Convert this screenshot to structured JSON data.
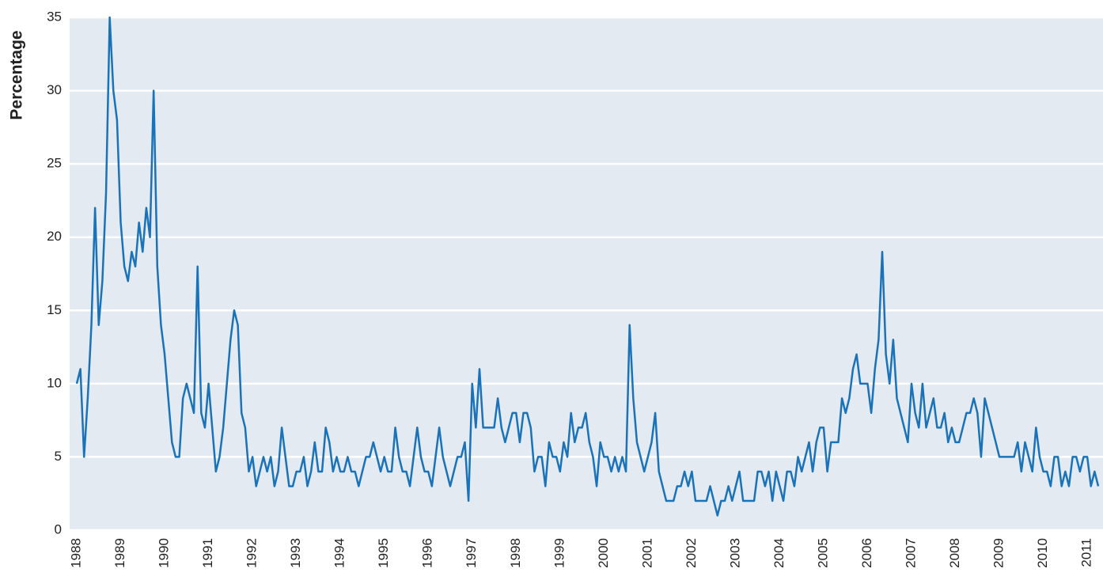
{
  "chart_data": {
    "type": "line",
    "y_label": "Percentage",
    "color": "#1a72b8",
    "grid": true,
    "ylim": [
      0,
      35
    ],
    "yticks": [
      0,
      5,
      10,
      15,
      20,
      25,
      30,
      35
    ],
    "categories": [
      "1988",
      null,
      null,
      null,
      null,
      null,
      null,
      null,
      null,
      null,
      null,
      null,
      "1989",
      null,
      null,
      null,
      null,
      null,
      null,
      null,
      null,
      null,
      null,
      null,
      "1990",
      null,
      null,
      null,
      null,
      null,
      null,
      null,
      null,
      null,
      null,
      null,
      "1991",
      null,
      null,
      null,
      null,
      null,
      null,
      null,
      null,
      null,
      null,
      null,
      "1992",
      null,
      null,
      null,
      null,
      null,
      null,
      null,
      null,
      null,
      null,
      null,
      "1993",
      null,
      null,
      null,
      null,
      null,
      null,
      null,
      null,
      null,
      null,
      null,
      "1994",
      null,
      null,
      null,
      null,
      null,
      null,
      null,
      null,
      null,
      null,
      null,
      "1995",
      null,
      null,
      null,
      null,
      null,
      null,
      null,
      null,
      null,
      null,
      null,
      "1996",
      null,
      null,
      null,
      null,
      null,
      null,
      null,
      null,
      null,
      null,
      null,
      "1997",
      null,
      null,
      null,
      null,
      null,
      null,
      null,
      null,
      null,
      null,
      null,
      "1998",
      null,
      null,
      null,
      null,
      null,
      null,
      null,
      null,
      null,
      null,
      null,
      "1999",
      null,
      null,
      null,
      null,
      null,
      null,
      null,
      null,
      null,
      null,
      null,
      "2000",
      null,
      null,
      null,
      null,
      null,
      null,
      null,
      null,
      null,
      null,
      null,
      "2001",
      null,
      null,
      null,
      null,
      null,
      null,
      null,
      null,
      null,
      null,
      null,
      "2002",
      null,
      null,
      null,
      null,
      null,
      null,
      null,
      null,
      null,
      null,
      null,
      "2003",
      null,
      null,
      null,
      null,
      null,
      null,
      null,
      null,
      null,
      null,
      null,
      "2004",
      null,
      null,
      null,
      null,
      null,
      null,
      null,
      null,
      null,
      null,
      null,
      "2005",
      null,
      null,
      null,
      null,
      null,
      null,
      null,
      null,
      null,
      null,
      null,
      "2006",
      null,
      null,
      null,
      null,
      null,
      null,
      null,
      null,
      null,
      null,
      null,
      "2007",
      null,
      null,
      null,
      null,
      null,
      null,
      null,
      null,
      null,
      null,
      null,
      "2008",
      null,
      null,
      null,
      null,
      null,
      null,
      null,
      null,
      null,
      null,
      null,
      "2009",
      null,
      null,
      null,
      null,
      null,
      null,
      null,
      null,
      null,
      null,
      null,
      "2010",
      null,
      null,
      null,
      null,
      null,
      null,
      null,
      null,
      null,
      null,
      null,
      "2011",
      null,
      null,
      null
    ],
    "values": [
      10,
      11,
      5,
      9,
      14,
      22,
      14,
      17,
      23,
      35,
      30,
      28,
      21,
      18,
      17,
      19,
      18,
      21,
      19,
      22,
      20,
      30,
      18,
      14,
      12,
      9,
      6,
      5,
      5,
      9,
      10,
      9,
      8,
      18,
      8,
      7,
      10,
      7,
      4,
      5,
      7,
      10,
      13,
      15,
      14,
      8,
      7,
      4,
      5,
      3,
      4,
      5,
      4,
      5,
      3,
      4,
      7,
      5,
      3,
      3,
      4,
      4,
      5,
      3,
      4,
      6,
      4,
      4,
      7,
      6,
      4,
      5,
      4,
      4,
      5,
      4,
      4,
      3,
      4,
      5,
      5,
      6,
      5,
      4,
      5,
      4,
      4,
      7,
      5,
      4,
      4,
      3,
      5,
      7,
      5,
      4,
      4,
      3,
      5,
      7,
      5,
      4,
      3,
      4,
      5,
      5,
      6,
      2,
      10,
      7,
      11,
      7,
      7,
      7,
      7,
      9,
      7,
      6,
      7,
      8,
      8,
      6,
      8,
      8,
      7,
      4,
      5,
      5,
      3,
      6,
      5,
      5,
      4,
      6,
      5,
      8,
      6,
      7,
      7,
      8,
      6,
      5,
      3,
      6,
      5,
      5,
      4,
      5,
      4,
      5,
      4,
      14,
      9,
      6,
      5,
      4,
      5,
      6,
      8,
      4,
      3,
      2,
      2,
      2,
      3,
      3,
      4,
      3,
      4,
      2,
      2,
      2,
      2,
      3,
      2,
      1,
      2,
      2,
      3,
      2,
      3,
      4,
      2,
      2,
      2,
      2,
      4,
      4,
      3,
      4,
      2,
      4,
      3,
      2,
      4,
      4,
      3,
      5,
      4,
      5,
      6,
      4,
      6,
      7,
      7,
      4,
      6,
      6,
      6,
      9,
      8,
      9,
      11,
      12,
      10,
      10,
      10,
      8,
      11,
      13,
      19,
      12,
      10,
      13,
      9,
      8,
      7,
      6,
      10,
      8,
      7,
      10,
      7,
      8,
      9,
      7,
      7,
      8,
      6,
      7,
      6,
      6,
      7,
      8,
      8,
      9,
      8,
      5,
      9,
      8,
      7,
      6,
      5,
      5,
      5,
      5,
      5,
      6,
      4,
      6,
      5,
      4,
      7,
      5,
      4,
      4,
      3,
      5,
      5,
      3,
      4,
      3,
      5,
      5,
      4,
      5,
      5,
      3,
      4,
      3
    ]
  }
}
